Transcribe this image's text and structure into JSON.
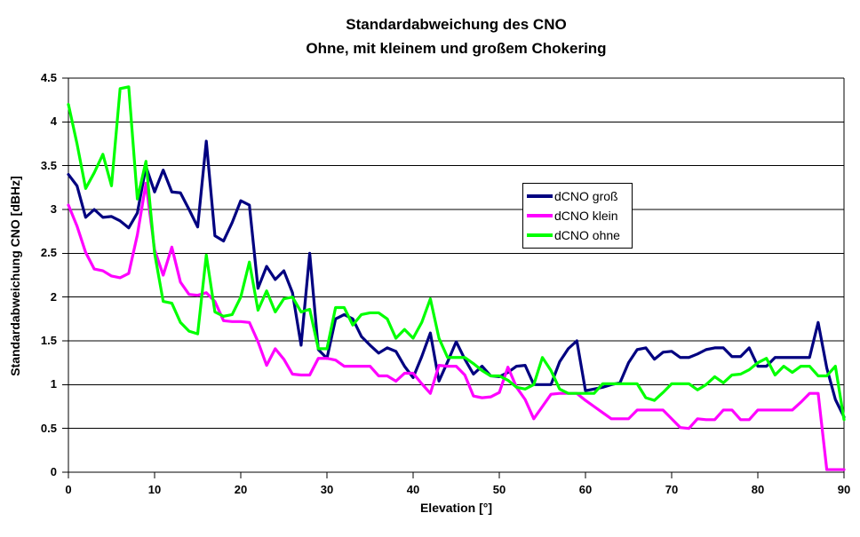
{
  "title": "Standardabweichung des CNO",
  "subtitle": "Ohne, mit kleinem und großem Chokering",
  "colors": {
    "axis": "#000000",
    "background": "#ffffff"
  },
  "chart_data": {
    "type": "line",
    "title": "Standardabweichung des CNO",
    "subtitle": "Ohne, mit kleinem und großem Chokering",
    "xlabel": "Elevation [°]",
    "ylabel": "Standardabweichung CNO [dBHz]",
    "xlim": [
      0,
      90
    ],
    "ylim": [
      0,
      4.5
    ],
    "x_tick_values": [
      0,
      10,
      20,
      30,
      40,
      50,
      60,
      70,
      80,
      90
    ],
    "x_tick_labels": [
      "0",
      "10",
      "20",
      "30",
      "40",
      "50",
      "60",
      "70",
      "80",
      "90"
    ],
    "y_tick_values": [
      0,
      0.5,
      1,
      1.5,
      2,
      2.5,
      3,
      3.5,
      4,
      4.5
    ],
    "y_tick_labels": [
      "0",
      "0.5",
      "1",
      "1.5",
      "2",
      "2.5",
      "3",
      "3.5",
      "4",
      "4.5"
    ],
    "grid": true,
    "legend_position": "right-center",
    "x_step": 1,
    "x_start": 0,
    "series": [
      {
        "name": "dCNO groß",
        "color": "#000080",
        "values": [
          3.4,
          3.27,
          2.91,
          3.0,
          2.91,
          2.92,
          2.87,
          2.79,
          2.96,
          3.49,
          3.2,
          3.45,
          3.2,
          3.19,
          3.0,
          2.8,
          3.78,
          2.7,
          2.64,
          2.85,
          3.1,
          3.05,
          2.1,
          2.35,
          2.2,
          2.3,
          2.05,
          1.45,
          2.5,
          1.4,
          1.3,
          1.75,
          1.8,
          1.75,
          1.55,
          1.45,
          1.36,
          1.42,
          1.38,
          1.21,
          1.08,
          1.32,
          1.59,
          1.04,
          1.26,
          1.49,
          1.29,
          1.12,
          1.21,
          1.1,
          1.09,
          1.14,
          1.21,
          1.22,
          1.0,
          1.0,
          1.0,
          1.26,
          1.41,
          1.5,
          0.93,
          0.95,
          0.97,
          1.0,
          1.02,
          1.25,
          1.4,
          1.42,
          1.29,
          1.37,
          1.38,
          1.31,
          1.31,
          1.35,
          1.4,
          1.42,
          1.42,
          1.32,
          1.32,
          1.42,
          1.21,
          1.21,
          1.31,
          1.31,
          1.31,
          1.31,
          1.31,
          1.71,
          1.19,
          0.83,
          0.63
        ]
      },
      {
        "name": "dCNO klein",
        "color": "#FF00FF",
        "values": [
          3.05,
          2.81,
          2.51,
          2.32,
          2.3,
          2.24,
          2.22,
          2.27,
          2.71,
          3.3,
          2.54,
          2.25,
          2.57,
          2.17,
          2.03,
          2.02,
          2.05,
          1.95,
          1.73,
          1.72,
          1.72,
          1.71,
          1.49,
          1.22,
          1.41,
          1.29,
          1.12,
          1.11,
          1.11,
          1.3,
          1.3,
          1.28,
          1.21,
          1.21,
          1.21,
          1.21,
          1.1,
          1.1,
          1.04,
          1.13,
          1.13,
          1.01,
          0.9,
          1.22,
          1.21,
          1.21,
          1.11,
          0.87,
          0.85,
          0.86,
          0.91,
          1.2,
          0.97,
          0.83,
          0.61,
          0.75,
          0.89,
          0.9,
          0.9,
          0.9,
          0.82,
          0.75,
          0.68,
          0.61,
          0.61,
          0.61,
          0.71,
          0.71,
          0.71,
          0.71,
          0.61,
          0.51,
          0.5,
          0.61,
          0.6,
          0.6,
          0.71,
          0.71,
          0.6,
          0.6,
          0.71,
          0.71,
          0.71,
          0.71,
          0.71,
          0.8,
          0.9,
          0.9,
          0.03,
          0.03,
          0.03
        ]
      },
      {
        "name": "dCNO ohne",
        "color": "#00FF00",
        "values": [
          4.2,
          3.75,
          3.24,
          3.42,
          3.63,
          3.27,
          4.38,
          4.4,
          3.12,
          3.55,
          2.5,
          1.95,
          1.93,
          1.71,
          1.61,
          1.58,
          2.48,
          1.83,
          1.78,
          1.8,
          2.0,
          2.4,
          1.85,
          2.07,
          1.83,
          1.98,
          2.0,
          1.83,
          1.86,
          1.41,
          1.41,
          1.88,
          1.88,
          1.68,
          1.8,
          1.82,
          1.82,
          1.75,
          1.53,
          1.63,
          1.53,
          1.71,
          1.98,
          1.53,
          1.31,
          1.31,
          1.31,
          1.24,
          1.16,
          1.1,
          1.1,
          1.05,
          0.97,
          0.95,
          1.0,
          1.31,
          1.16,
          0.95,
          0.9,
          0.9,
          0.9,
          0.9,
          1.01,
          1.01,
          1.01,
          1.01,
          1.01,
          0.85,
          0.82,
          0.91,
          1.01,
          1.01,
          1.01,
          0.94,
          1.0,
          1.09,
          1.02,
          1.11,
          1.12,
          1.17,
          1.25,
          1.3,
          1.11,
          1.21,
          1.14,
          1.21,
          1.21,
          1.1,
          1.1,
          1.21,
          0.6
        ]
      }
    ]
  }
}
